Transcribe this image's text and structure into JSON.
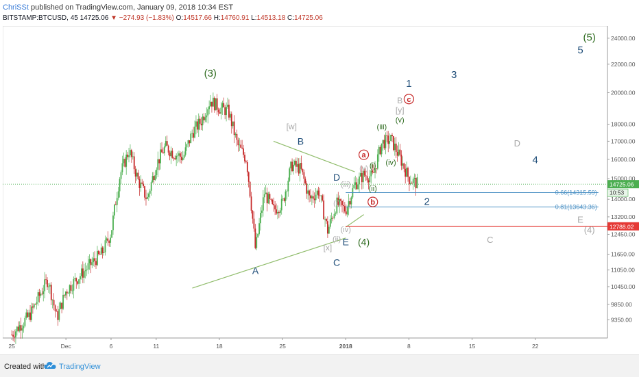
{
  "header": {
    "author": "ChriSSt",
    "published": " published on TradingView.com, January 09, 2018 10:34 EST",
    "symbol": "BITSTAMP:BTCUSD, 45",
    "last": "14725.06",
    "change": "▼ −274.93 (−1.83%)",
    "o_label": "O:",
    "o": "14517.66",
    "h_label": "H:",
    "h": "14760.91",
    "l_label": "L:",
    "l": "14513.18",
    "c_label": "C:",
    "c": "14725.06"
  },
  "footer": {
    "created": "Created with",
    "brand": "TradingView"
  },
  "colors": {
    "up": "#4caf50",
    "down": "#c62828",
    "wave_blue": "#1f4e79",
    "wave_green": "#2e6b1f",
    "wave_gray": "#a8a8a8",
    "wave_red": "#c62828",
    "trendline": "#8fbc6a",
    "fib": "#4a90c4",
    "level_red": "#e53935",
    "price_tag": "#4caf50"
  },
  "chart_data": {
    "type": "candlestick",
    "x_axis_type": "date",
    "y_axis_scale": "log",
    "ylim": [
      8800,
      25000
    ],
    "xlim": [
      "2017-11-24",
      "2018-01-30"
    ],
    "y_ticks": [
      "24000.00",
      "22000.00",
      "20000.00",
      "18000.00",
      "17000.00",
      "16000.00",
      "15000.00",
      "14000.00",
      "13200.00",
      "12450.00",
      "11650.00",
      "11050.00",
      "10450.00",
      "9850.00",
      "9350.00"
    ],
    "x_ticks": [
      {
        "label": "25",
        "date": "2017-11-25"
      },
      {
        "label": "Dec",
        "date": "2017-12-01"
      },
      {
        "label": "6",
        "date": "2017-12-06"
      },
      {
        "label": "11",
        "date": "2017-12-11"
      },
      {
        "label": "18",
        "date": "2017-12-18"
      },
      {
        "label": "25",
        "date": "2017-12-25"
      },
      {
        "label": "2018",
        "date": "2018-01-01"
      },
      {
        "label": "8",
        "date": "2018-01-08"
      },
      {
        "label": "15",
        "date": "2018-01-15"
      },
      {
        "label": "22",
        "date": "2018-01-22"
      }
    ],
    "price_path": [
      [
        "2017-11-25",
        8900
      ],
      [
        "2017-11-27",
        9500
      ],
      [
        "2017-11-29",
        10700
      ],
      [
        "2017-11-30",
        9400
      ],
      [
        "2017-12-01",
        10300
      ],
      [
        "2017-12-03",
        11000
      ],
      [
        "2017-12-05",
        11700
      ],
      [
        "2017-12-06",
        12500
      ],
      [
        "2017-12-07",
        15200
      ],
      [
        "2017-12-08",
        16500
      ],
      [
        "2017-12-09",
        14900
      ],
      [
        "2017-12-10",
        14000
      ],
      [
        "2017-12-11",
        15700
      ],
      [
        "2017-12-12",
        16700
      ],
      [
        "2017-12-13",
        16300
      ],
      [
        "2017-12-14",
        16100
      ],
      [
        "2017-12-15",
        17500
      ],
      [
        "2017-12-16",
        18200
      ],
      [
        "2017-12-17",
        19500
      ],
      [
        "2017-12-18",
        19000
      ],
      [
        "2017-12-19",
        18800
      ],
      [
        "2017-12-20",
        16800
      ],
      [
        "2017-12-21",
        16000
      ],
      [
        "2017-12-22",
        11800
      ],
      [
        "2017-12-23",
        14300
      ],
      [
        "2017-12-24",
        13500
      ],
      [
        "2017-12-25",
        13800
      ],
      [
        "2017-12-26",
        15700
      ],
      [
        "2017-12-27",
        15500
      ],
      [
        "2017-12-28",
        14000
      ],
      [
        "2017-12-29",
        14400
      ],
      [
        "2017-12-30",
        12600
      ],
      [
        "2017-12-31",
        13800
      ],
      [
        "2018-01-01",
        13500
      ],
      [
        "2018-01-02",
        14700
      ],
      [
        "2018-01-03",
        15200
      ],
      [
        "2018-01-04",
        15100
      ],
      [
        "2018-01-05",
        16900
      ],
      [
        "2018-01-06",
        17100
      ],
      [
        "2018-01-07",
        16100
      ],
      [
        "2018-01-08",
        15000
      ],
      [
        "2018-01-09",
        14725
      ]
    ],
    "last_price_tag": "14725.06",
    "countdown_tag": "10:53",
    "trendlines": [
      {
        "from": [
          "2017-12-15",
          10400
        ],
        "to": [
          "2018-01-01",
          12300
        ]
      },
      {
        "from": [
          "2017-12-24",
          17000
        ],
        "to": [
          "2018-01-02",
          15350
        ]
      },
      {
        "from": [
          "2018-01-01",
          12750
        ],
        "to": [
          "2018-01-03",
          13300
        ]
      }
    ],
    "fib_levels": [
      {
        "label": "0.66(14315.59)",
        "value": 14315.59,
        "from": "2018-01-01",
        "to": "2018-01-29"
      },
      {
        "label": "0.81(13643.36)",
        "value": 13643.36,
        "from": "2018-01-01",
        "to": "2018-01-29"
      }
    ],
    "horizontal_level": {
      "label": "12788.02",
      "value": 12788.02,
      "from": "2018-01-01"
    },
    "annotations": [
      {
        "text": "(3)",
        "date": "2017-12-17",
        "price": 21100,
        "color": "wave_green",
        "size": 15
      },
      {
        "text": "(5)",
        "date": "2018-01-28",
        "price": 23800,
        "color": "wave_green",
        "size": 15
      },
      {
        "text": "5",
        "date": "2018-01-27",
        "price": 22800,
        "color": "wave_blue",
        "size": 15
      },
      {
        "text": "1",
        "date": "2018-01-08",
        "price": 20400,
        "color": "wave_blue",
        "size": 15
      },
      {
        "text": "3",
        "date": "2018-01-13",
        "price": 21000,
        "color": "wave_blue",
        "size": 15
      },
      {
        "text": "4",
        "date": "2018-01-22",
        "price": 15800,
        "color": "wave_blue",
        "size": 15
      },
      {
        "text": "2",
        "date": "2018-01-10",
        "price": 13730,
        "color": "wave_blue",
        "size": 15
      },
      {
        "text": "A",
        "date": "2017-12-22",
        "price": 10900,
        "color": "wave_blue",
        "size": 14
      },
      {
        "text": "B",
        "date": "2017-12-27",
        "price": 16800,
        "color": "wave_blue",
        "size": 14
      },
      {
        "text": "C",
        "date": "2017-12-31",
        "price": 11200,
        "color": "wave_blue",
        "size": 14
      },
      {
        "text": "D",
        "date": "2017-12-31",
        "price": 14900,
        "color": "wave_blue",
        "size": 14
      },
      {
        "text": "E",
        "date": "2018-01-01",
        "price": 12000,
        "color": "wave_blue",
        "size": 14
      },
      {
        "text": "(4)",
        "date": "2018-01-03",
        "price": 12000,
        "color": "wave_green",
        "size": 14
      },
      {
        "text": "(i)",
        "date": "2018-01-04",
        "price": 15550,
        "color": "wave_green",
        "size": 11
      },
      {
        "text": "(ii)",
        "date": "2018-01-04",
        "price": 14400,
        "color": "wave_green",
        "size": 11
      },
      {
        "text": "(iii)",
        "date": "2018-01-05",
        "price": 17700,
        "color": "wave_green",
        "size": 11
      },
      {
        "text": "(iv)",
        "date": "2018-01-06",
        "price": 15700,
        "color": "wave_green",
        "size": 11
      },
      {
        "text": "(v)",
        "date": "2018-01-07",
        "price": 18100,
        "color": "wave_green",
        "size": 11
      },
      {
        "text": "[w]",
        "date": "2017-12-26",
        "price": 17700,
        "color": "wave_gray",
        "size": 12
      },
      {
        "text": "[x]",
        "date": "2017-12-30",
        "price": 11800,
        "color": "wave_gray",
        "size": 12
      },
      {
        "text": "[y]",
        "date": "2018-01-07",
        "price": 18700,
        "color": "wave_gray",
        "size": 12
      },
      {
        "text": "B",
        "date": "2018-01-07",
        "price": 19300,
        "color": "wave_gray",
        "size": 12
      },
      {
        "text": "(v)",
        "date": "2018-01-03",
        "price": 15400,
        "color": "wave_gray",
        "size": 11
      },
      {
        "text": "(iii)",
        "date": "2018-01-01",
        "price": 14600,
        "color": "wave_gray",
        "size": 11
      },
      {
        "text": "(i)",
        "date": "2017-12-31",
        "price": 13700,
        "color": "wave_gray",
        "size": 11
      },
      {
        "text": "(iv)",
        "date": "2018-01-01",
        "price": 12550,
        "color": "wave_gray",
        "size": 11
      },
      {
        "text": "(ii)",
        "date": "2017-12-31",
        "price": 12150,
        "color": "wave_gray",
        "size": 11
      },
      {
        "text": "C",
        "date": "2018-01-17",
        "price": 12100,
        "color": "wave_gray",
        "size": 13
      },
      {
        "text": "D",
        "date": "2018-01-20",
        "price": 16700,
        "color": "wave_gray",
        "size": 13
      },
      {
        "text": "E",
        "date": "2018-01-27",
        "price": 12950,
        "color": "wave_gray",
        "size": 13
      },
      {
        "text": "(4)",
        "date": "2018-01-28",
        "price": 12500,
        "color": "wave_gray",
        "size": 13
      }
    ],
    "circled_annotations": [
      {
        "text": "a",
        "date": "2018-01-03",
        "price": 16100
      },
      {
        "text": "b",
        "date": "2018-01-04",
        "price": 13750
      },
      {
        "text": "c",
        "date": "2018-01-08",
        "price": 19400
      }
    ]
  }
}
